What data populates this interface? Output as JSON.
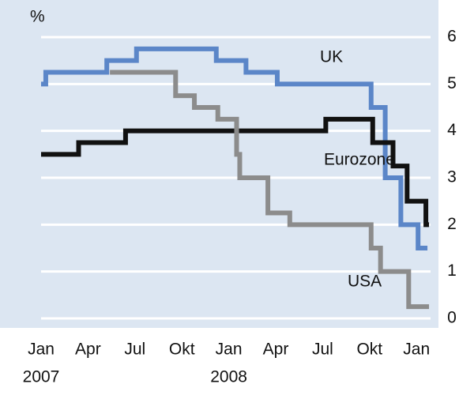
{
  "chart_data": {
    "type": "step",
    "y_unit_label": "%",
    "xlim": [
      0,
      25
    ],
    "xticks": [
      {
        "value": 0,
        "label": "Jan"
      },
      {
        "value": 3,
        "label": "Apr"
      },
      {
        "value": 6,
        "label": "Jul"
      },
      {
        "value": 9,
        "label": "Okt"
      },
      {
        "value": 12,
        "label": "Jan"
      },
      {
        "value": 15,
        "label": "Apr"
      },
      {
        "value": 18,
        "label": "Jul"
      },
      {
        "value": 21,
        "label": "Okt"
      },
      {
        "value": 24,
        "label": "Jan"
      }
    ],
    "x_year_labels": [
      {
        "value": 0,
        "label": "2007"
      },
      {
        "value": 12,
        "label": "2008"
      }
    ],
    "ylim": [
      0,
      6
    ],
    "yticks": [
      0,
      1,
      2,
      3,
      4,
      5,
      6
    ],
    "grid": true,
    "series": [
      {
        "name": "UK",
        "color": "#5b86c8",
        "x": [
          0,
          0.3,
          4.2,
          6.1,
          11.2,
          13.1,
          15.1,
          21.1,
          22,
          23,
          24.1,
          24.7
        ],
        "values": [
          5,
          5.25,
          5.5,
          5.75,
          5.5,
          5.25,
          5,
          4.5,
          3,
          2,
          1.5,
          1.5
        ]
      },
      {
        "name": "Eurozone",
        "color": "#111111",
        "x": [
          0,
          2.4,
          5.4,
          18.2,
          21.2,
          22.5,
          23.4,
          24.6,
          24.8
        ],
        "values": [
          3.5,
          3.75,
          4,
          4.25,
          3.75,
          3.25,
          2.5,
          2,
          2
        ]
      },
      {
        "name": "USA",
        "color": "#8c8c8c",
        "x": [
          4.4,
          8.6,
          9.8,
          11.3,
          12.5,
          12.7,
          14.5,
          15.9,
          21.1,
          21.7,
          23.5,
          24.8
        ],
        "values": [
          5.25,
          4.75,
          4.5,
          4.25,
          3.5,
          3,
          2.25,
          2,
          1.5,
          1,
          0.25,
          0.25
        ]
      }
    ]
  }
}
